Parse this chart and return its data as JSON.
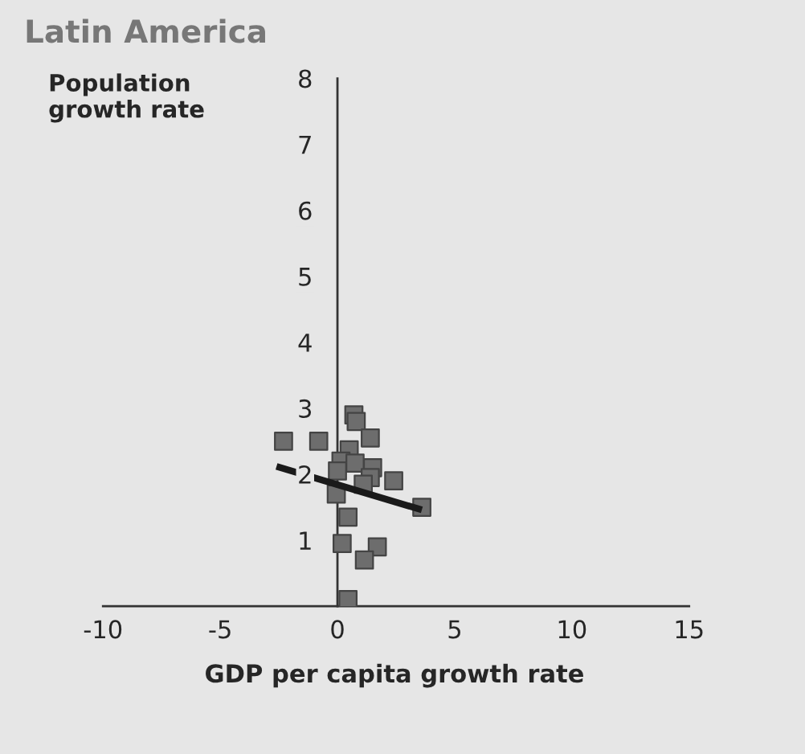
{
  "chart_data": {
    "type": "scatter",
    "title": "Latin America",
    "xlabel": "GDP per capita growth rate",
    "ylabel": "Population\ngrowth rate",
    "xlim": [
      -10,
      15
    ],
    "xticks": [
      -10,
      -5,
      0,
      5,
      10,
      15
    ],
    "ylim": [
      0,
      8
    ],
    "yticks": [
      1,
      2,
      3,
      4,
      5,
      6,
      7,
      8
    ],
    "grid": false,
    "series": [
      {
        "type": "scatter",
        "marker": "square",
        "color": "#6d6d6d",
        "x": [
          0.7,
          0.8,
          -2.3,
          -0.8,
          1.4,
          0.5,
          0.15,
          0.75,
          1.5,
          0,
          1.4,
          1.1,
          2.4,
          -0.05,
          3.6,
          0.45,
          0.2,
          1.7,
          1.15,
          0.45
        ],
        "values": [
          2.9,
          2.8,
          2.5,
          2.5,
          2.55,
          2.37,
          2.2,
          2.17,
          2.1,
          2.05,
          1.95,
          1.85,
          1.9,
          1.7,
          1.5,
          1.35,
          0.95,
          0.9,
          0.7,
          0.1
        ]
      },
      {
        "type": "line",
        "color": "#1a1a1a",
        "x": [
          -2.6,
          3.6
        ],
        "values": [
          2.12,
          1.46
        ]
      }
    ]
  }
}
